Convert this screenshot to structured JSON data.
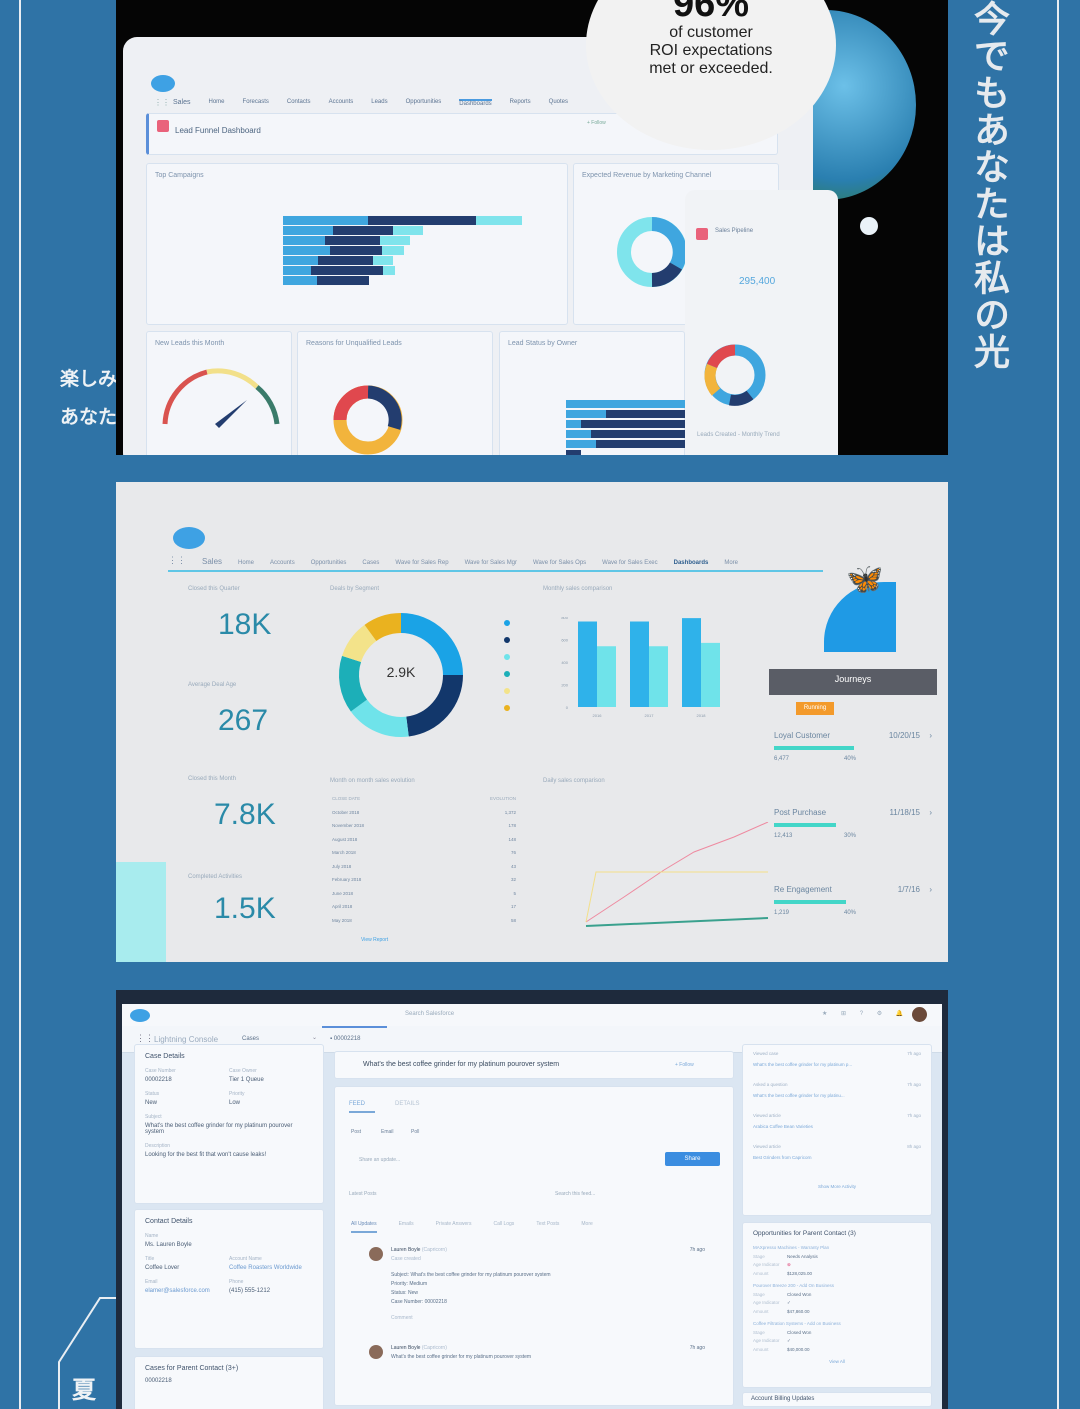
{
  "lyrics": {
    "vertical": "今でもあなたは私の光",
    "line1": "楽しみ",
    "line2": "あなた",
    "bottom_char": "夏"
  },
  "colors": {
    "background": "#2f73a6",
    "accent": "#3ea1e4",
    "teal": "#43d6c8",
    "navy": "#1b3a6b",
    "running": "#f39a2b"
  },
  "panel1": {
    "promo": {
      "percent": "96%",
      "line1": "of customer",
      "line2": "ROI expectations",
      "line3": "met or exceeded."
    },
    "nav": {
      "app": "Sales",
      "items": [
        "Home",
        "Forecasts",
        "Contacts",
        "Accounts",
        "Leads",
        "Opportunities",
        "Dashboards",
        "Reports",
        "Quotes"
      ],
      "active": "Dashboards"
    },
    "dashboard_title": "Lead Funnel Dashboard",
    "follow": "+ Follow",
    "cards": {
      "top_campaigns": "Top Campaigns",
      "expected_revenue": "Expected Revenue by Marketing Channel",
      "new_leads": "New Leads this Month",
      "unqualified": "Reasons for Unqualified Leads",
      "lead_status": "Lead Status by Owner"
    },
    "phone": {
      "title": "Sales Pipeline",
      "value": "295,400",
      "footer": "Leads Created - Monthly Trend"
    }
  },
  "panel2": {
    "nav": {
      "app": "Sales",
      "items": [
        "Home",
        "Accounts",
        "Opportunities",
        "Cases",
        "Wave for Sales Rep",
        "Wave for Sales Mgr",
        "Wave for Sales Ops",
        "Wave for Sales Exec",
        "Dashboards",
        "More"
      ],
      "active": "Dashboards"
    },
    "kpis": [
      {
        "label": "Closed this Quarter",
        "value": "18K"
      },
      {
        "label": "Average Deal Age",
        "value": "267"
      },
      {
        "label": "Closed this Month",
        "value": "7.8K"
      },
      {
        "label": "Completed Activities",
        "value": "1.5K"
      }
    ],
    "donut_title": "Deals by Segment",
    "donut_center": "2.9K",
    "bar_title": "Monthly sales comparison",
    "table_title": "Month on month sales evolution",
    "table": {
      "headers": [
        "CLOSE DATE",
        "EVOLUTION"
      ],
      "rows": [
        [
          "October 2018",
          "1,372"
        ],
        [
          "November 2018",
          "178"
        ],
        [
          "August 2018",
          "148"
        ],
        [
          "March 2018",
          "76"
        ],
        [
          "July 2018",
          "43"
        ],
        [
          "February 2018",
          "32"
        ],
        [
          "June 2018",
          "5"
        ],
        [
          "April 2018",
          "17"
        ],
        [
          "May 2018",
          "58"
        ]
      ],
      "footer": "View Report"
    },
    "line_title": "Daily sales comparison",
    "journeys": {
      "title": "Journeys",
      "status": "Running",
      "items": [
        {
          "name": "Loyal Customer",
          "date": "10/20/15",
          "count": "6,477",
          "pct": "40%",
          "progress": 0.4
        },
        {
          "name": "Post Purchase",
          "date": "11/18/15",
          "count": "12,413",
          "pct": "30%",
          "progress": 0.3
        },
        {
          "name": "Re Engagement",
          "date": "1/7/16",
          "count": "1,219",
          "pct": "40%",
          "progress": 0.4
        }
      ]
    }
  },
  "panel3": {
    "search": "Search Salesforce",
    "app": "Lightning Console",
    "object": "Cases",
    "tab": "00002218",
    "case": {
      "title": "Case Details",
      "fields": [
        [
          "Case Number",
          "00002218"
        ],
        [
          "Case Owner",
          "Tier 1 Queue"
        ],
        [
          "Status",
          "New"
        ],
        [
          "Priority",
          "Low"
        ]
      ],
      "subject_label": "Subject",
      "subject": "What's the best coffee grinder for my platinum pourover system",
      "description_label": "Description",
      "description": "Looking for the best fit that won't cause leaks!"
    },
    "contact": {
      "title": "Contact Details",
      "name_label": "Name",
      "name": "Ms. Lauren Boyle",
      "title_label": "Title",
      "title_value": "Coffee Lover",
      "account_label": "Account Name",
      "account": "Coffee Roasters Worldwide",
      "email_label": "Email",
      "email": "elamer@salesforce.com",
      "phone_label": "Phone",
      "phone": "(415) 555-1212"
    },
    "cases_parent": {
      "title": "Cases for Parent Contact (3+)",
      "number": "00002218"
    },
    "header_title": "What's the best coffee grinder for my platinum pourover system",
    "follow": "+ Follow",
    "tabs": [
      "FEED",
      "DETAILS"
    ],
    "publisher": [
      "Post",
      "Email",
      "Poll"
    ],
    "share_placeholder": "Share an update...",
    "share": "Share",
    "sort": "Latest Posts",
    "search_feed": "Search this feed...",
    "filters": [
      "All Updates",
      "Emails",
      "Private Answers",
      "Call Logs",
      "Text Posts",
      "More"
    ],
    "posts": [
      {
        "author": "Lauren Boyle",
        "meta": "(Capricorn)",
        "time": "7h ago",
        "action": "Case created",
        "lines": [
          "Subject: What's the best coffee grinder for my platinum pourover system",
          "Priority: Medium",
          "Status: New",
          "Case Number: 00002218"
        ],
        "comment": "Comment"
      },
      {
        "author": "Lauren Boyle",
        "meta": "(Capricorn)",
        "time": "7h ago",
        "action": "What's the best coffee grinder for my platinum pourover system"
      }
    ],
    "activity": [
      {
        "label": "Viewed case",
        "text": "What's the best coffee grinder for my platinum p...",
        "time": "7h ago"
      },
      {
        "label": "Asked a question",
        "text": "What's the best coffee grinder for my platinu...",
        "time": "7h ago"
      },
      {
        "label": "Viewed article",
        "text": "Arabica Coffee Bean Varieties",
        "time": "7h ago"
      },
      {
        "label": "Viewed article",
        "text": "Best Grinders from Capricorn",
        "time": "8h ago"
      }
    ],
    "show_more": "Show More Activity",
    "opps": {
      "title": "Opportunities for Parent Contact (3)",
      "items": [
        {
          "name": "MAXpresso Machines - Warranty Plan",
          "stage": "Needs Analysis",
          "amount": "$128,025.00"
        },
        {
          "name": "Pourover Breeze 200 - Add On Business",
          "stage": "Closed Won",
          "amount": "$47,860.00"
        },
        {
          "name": "Coffee Filtration Systems - Add on Business",
          "stage": "Closed Won",
          "amount": "$40,000.00"
        }
      ],
      "stage_label": "Stage",
      "age_label": "Age Indicator",
      "amount_label": "Amount",
      "view_all": "View All"
    },
    "billing": "Account Billing Updates"
  },
  "chart_data": [
    {
      "type": "pie",
      "title": "Deals by Segment",
      "center_label": "2.9K",
      "legend": "right",
      "slices": [
        {
          "color": "#1aa3e6",
          "value": 25
        },
        {
          "color": "#12376b",
          "value": 23
        },
        {
          "color": "#6fe3ea",
          "value": 17
        },
        {
          "color": "#1cafb8",
          "value": 15
        },
        {
          "color": "#f3e38a",
          "value": 10
        },
        {
          "color": "#eab21f",
          "value": 10
        }
      ]
    },
    {
      "type": "bar",
      "title": "Monthly sales comparison",
      "categories": [
        "2016",
        "2017",
        "2018"
      ],
      "ylim": [
        0,
        800
      ],
      "yticks": [
        0,
        200,
        400,
        600,
        800
      ],
      "series": [
        {
          "color": "#2fb2ea",
          "values": [
            760,
            760,
            790
          ]
        },
        {
          "color": "#6fe3ea",
          "values": [
            540,
            540,
            570
          ]
        }
      ]
    }
  ]
}
